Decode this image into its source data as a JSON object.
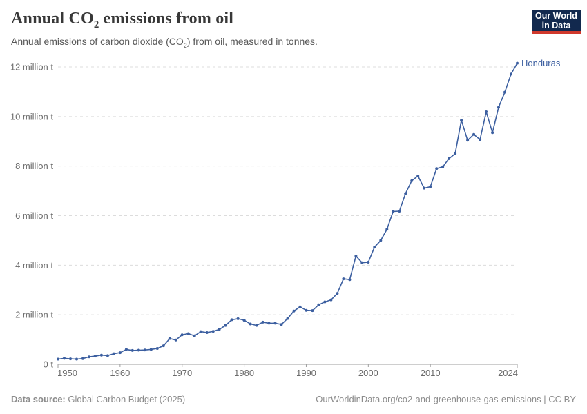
{
  "header": {
    "title": {
      "prefix": "Annual CO",
      "sub": "2",
      "suffix": " emissions from oil"
    },
    "subtitle": {
      "prefix": "Annual emissions of carbon dioxide (CO",
      "sub": "2",
      "suffix": ") from oil, measured in tonnes."
    }
  },
  "logo": {
    "line1": "Our World",
    "line2": "in Data",
    "bg_color": "#12294E",
    "accent_color": "#D0392C",
    "text_color": "#FFFFFF"
  },
  "chart_data": {
    "type": "line",
    "title": "Annual CO₂ emissions from oil",
    "subtitle": "Annual emissions of carbon dioxide (CO₂) from oil, measured in tonnes.",
    "entity": "Honduras",
    "unit": "million tonnes",
    "legend": "end-of-line-label",
    "grid": "horizontal-dashed",
    "x": [
      1950,
      1951,
      1952,
      1953,
      1954,
      1955,
      1956,
      1957,
      1958,
      1959,
      1960,
      1961,
      1962,
      1963,
      1964,
      1965,
      1966,
      1967,
      1968,
      1969,
      1970,
      1971,
      1972,
      1973,
      1974,
      1975,
      1976,
      1977,
      1978,
      1979,
      1980,
      1981,
      1982,
      1983,
      1984,
      1985,
      1986,
      1987,
      1988,
      1989,
      1990,
      1991,
      1992,
      1993,
      1994,
      1995,
      1996,
      1997,
      1998,
      1999,
      2000,
      2001,
      2002,
      2003,
      2004,
      2005,
      2006,
      2007,
      2008,
      2009,
      2010,
      2011,
      2012,
      2013,
      2014,
      2015,
      2016,
      2017,
      2018,
      2019,
      2020,
      2021,
      2022,
      2023,
      2024
    ],
    "series": [
      {
        "name": "Honduras",
        "color": "#3C5FA0",
        "values": [
          0.21,
          0.24,
          0.22,
          0.21,
          0.23,
          0.3,
          0.33,
          0.37,
          0.35,
          0.43,
          0.47,
          0.6,
          0.56,
          0.57,
          0.58,
          0.6,
          0.64,
          0.75,
          1.04,
          0.98,
          1.19,
          1.24,
          1.15,
          1.32,
          1.28,
          1.33,
          1.41,
          1.57,
          1.8,
          1.84,
          1.78,
          1.63,
          1.57,
          1.7,
          1.66,
          1.66,
          1.61,
          1.85,
          2.15,
          2.32,
          2.18,
          2.17,
          2.4,
          2.52,
          2.6,
          2.86,
          3.45,
          3.42,
          4.37,
          4.1,
          4.12,
          4.73,
          5.0,
          5.45,
          6.17,
          6.18,
          6.89,
          7.41,
          7.6,
          7.11,
          7.17,
          7.9,
          7.97,
          8.3,
          8.5,
          9.85,
          9.04,
          9.28,
          9.07,
          10.19,
          9.35,
          10.37,
          10.98,
          11.71,
          12.15
        ]
      }
    ],
    "x_axis": {
      "range": [
        1950,
        2024
      ],
      "ticks": [
        1950,
        1960,
        1970,
        1980,
        1990,
        2000,
        2010,
        2024
      ]
    },
    "y_axis": {
      "range": [
        0,
        12
      ],
      "ticks": [
        {
          "value": 0,
          "label": "0 t"
        },
        {
          "value": 2,
          "label": "2 million t"
        },
        {
          "value": 4,
          "label": "4 million t"
        },
        {
          "value": 6,
          "label": "6 million t"
        },
        {
          "value": 8,
          "label": "8 million t"
        },
        {
          "value": 10,
          "label": "10 million t"
        },
        {
          "value": 12,
          "label": "12 million t"
        }
      ]
    },
    "colors": {
      "line": "#3C5FA0",
      "grid": "#DCDCDC",
      "axis": "#9E9E9E",
      "tick_text": "#6B6B6B"
    }
  },
  "footer": {
    "source_label": "Data source:",
    "source_text": " Global Carbon Budget (2025)",
    "link_text": "OurWorldinData.org/co2-and-greenhouse-gas-emissions | CC BY"
  }
}
